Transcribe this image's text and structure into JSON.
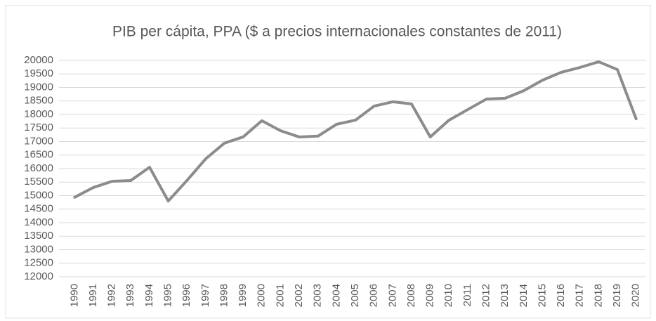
{
  "chart_data": {
    "type": "line",
    "title": "PIB per cápita, PPA ($ a precios internacionales constantes de 2011)",
    "categories": [
      "1990",
      "1991",
      "1992",
      "1993",
      "1994",
      "1995",
      "1996",
      "1997",
      "1998",
      "1999",
      "2000",
      "2001",
      "2002",
      "2003",
      "2004",
      "2005",
      "2006",
      "2007",
      "2008",
      "2009",
      "2010",
      "2011",
      "2012",
      "2013",
      "2014",
      "2015",
      "2016",
      "2017",
      "2018",
      "2019",
      "2020"
    ],
    "series": [
      {
        "name": "PIB per cápita",
        "color": "#8c8c8c",
        "values": [
          14940,
          15300,
          15530,
          15560,
          16050,
          14800,
          15560,
          16360,
          16940,
          17170,
          17770,
          17400,
          17170,
          17200,
          17640,
          17790,
          18310,
          18470,
          18390,
          17170,
          17790,
          18180,
          18570,
          18600,
          18880,
          19270,
          19560,
          19740,
          19950,
          19660,
          17840
        ]
      }
    ],
    "ylim": [
      12000,
      20000
    ],
    "yticks": [
      12000,
      12500,
      13000,
      13500,
      14000,
      14500,
      15000,
      15500,
      16000,
      16500,
      17000,
      17500,
      18000,
      18500,
      19000,
      19500,
      20000
    ],
    "grid": true
  }
}
